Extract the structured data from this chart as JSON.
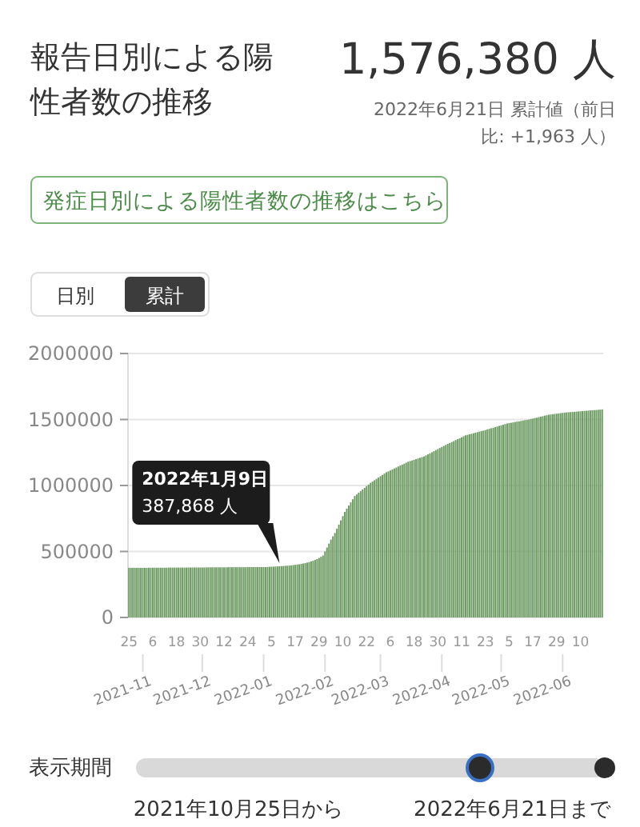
{
  "chart_data": {
    "type": "bar",
    "title": "報告日別による陽性者数の推移",
    "color": "#6f9c65",
    "grid": "y",
    "ylim": [
      0,
      2000000
    ],
    "yticks": [
      0,
      500000,
      1000000,
      1500000,
      2000000
    ],
    "xlim": [
      "2021-10-25",
      "2022-06-21"
    ],
    "xticks": [
      {
        "value": "2021-10-25",
        "label": "25"
      },
      {
        "value": "2021-11-06",
        "label": "6"
      },
      {
        "value": "2021-11-18",
        "label": "18"
      },
      {
        "value": "2021-11-30",
        "label": "30"
      },
      {
        "value": "2021-12-12",
        "label": "12"
      },
      {
        "value": "2021-12-24",
        "label": "24"
      },
      {
        "value": "2022-01-05",
        "label": "5"
      },
      {
        "value": "2022-01-17",
        "label": "17"
      },
      {
        "value": "2022-01-29",
        "label": "29"
      },
      {
        "value": "2022-02-10",
        "label": "10"
      },
      {
        "value": "2022-02-22",
        "label": "22"
      },
      {
        "value": "2022-03-06",
        "label": "6"
      },
      {
        "value": "2022-03-18",
        "label": "18"
      },
      {
        "value": "2022-03-30",
        "label": "30"
      },
      {
        "value": "2022-04-11",
        "label": "11"
      },
      {
        "value": "2022-04-23",
        "label": "23"
      },
      {
        "value": "2022-05-05",
        "label": "5"
      },
      {
        "value": "2022-05-17",
        "label": "17"
      },
      {
        "value": "2022-05-29",
        "label": "29"
      },
      {
        "value": "2022-06-10",
        "label": "10"
      }
    ],
    "x2lim": [
      "2021-10-25",
      "2022-06-21"
    ],
    "x2ticks": [
      {
        "value": "2021-11-01",
        "label": "2021-11"
      },
      {
        "value": "2021-12-01",
        "label": "2021-12"
      },
      {
        "value": "2022-01-01",
        "label": "2022-01"
      },
      {
        "value": "2022-02-01",
        "label": "2022-02"
      },
      {
        "value": "2022-03-01",
        "label": "2022-03"
      },
      {
        "value": "2022-04-01",
        "label": "2022-04"
      },
      {
        "value": "2022-05-01",
        "label": "2022-05"
      },
      {
        "value": "2022-06-01",
        "label": "2022-06"
      }
    ],
    "annotations": [
      "1,576,380 人",
      "2022年6月21日 累計値（前日比: +1,963 人）",
      "発症日別による陽性者数の推移はこちら",
      "日別",
      "累計",
      {
        "text": "2022年1月9日\n387,868 人",
        "x": "2022-01-09",
        "y": 387868
      },
      "表示期間",
      "2021年10月25日から",
      "2022年6月21日まで"
    ],
    "x": [
      "2021-10-25",
      "2021-10-26",
      "2021-10-27",
      "2021-10-28",
      "2021-10-29",
      "2021-10-30",
      "2021-10-31",
      "2021-11-01",
      "2021-11-02",
      "2021-11-03",
      "2021-11-04",
      "2021-11-05",
      "2021-11-06",
      "2021-11-07",
      "2021-11-08",
      "2021-11-09",
      "2021-11-10",
      "2021-11-11",
      "2021-11-12",
      "2021-11-13",
      "2021-11-14",
      "2021-11-15",
      "2021-11-16",
      "2021-11-17",
      "2021-11-18",
      "2021-11-19",
      "2021-11-20",
      "2021-11-21",
      "2021-11-22",
      "2021-11-23",
      "2021-11-24",
      "2021-11-25",
      "2021-11-26",
      "2021-11-27",
      "2021-11-28",
      "2021-11-29",
      "2021-11-30",
      "2021-12-01",
      "2021-12-02",
      "2021-12-03",
      "2021-12-04",
      "2021-12-05",
      "2021-12-06",
      "2021-12-07",
      "2021-12-08",
      "2021-12-09",
      "2021-12-10",
      "2021-12-11",
      "2021-12-12",
      "2021-12-13",
      "2021-12-14",
      "2021-12-15",
      "2021-12-16",
      "2021-12-17",
      "2021-12-18",
      "2021-12-19",
      "2021-12-20",
      "2021-12-21",
      "2021-12-22",
      "2021-12-23",
      "2021-12-24",
      "2021-12-25",
      "2021-12-26",
      "2021-12-27",
      "2021-12-28",
      "2021-12-29",
      "2021-12-30",
      "2021-12-31",
      "2022-01-01",
      "2022-01-02",
      "2022-01-03",
      "2022-01-04",
      "2022-01-05",
      "2022-01-06",
      "2022-01-07",
      "2022-01-08",
      "2022-01-09",
      "2022-01-10",
      "2022-01-11",
      "2022-01-12",
      "2022-01-13",
      "2022-01-14",
      "2022-01-15",
      "2022-01-16",
      "2022-01-17",
      "2022-01-18",
      "2022-01-19",
      "2022-01-20",
      "2022-01-21",
      "2022-01-22",
      "2022-01-23",
      "2022-01-24",
      "2022-01-25",
      "2022-01-26",
      "2022-01-27",
      "2022-01-28",
      "2022-01-29",
      "2022-01-30",
      "2022-01-31",
      "2022-02-01",
      "2022-02-02",
      "2022-02-03",
      "2022-02-04",
      "2022-02-05",
      "2022-02-06",
      "2022-02-07",
      "2022-02-08",
      "2022-02-09",
      "2022-02-10",
      "2022-02-11",
      "2022-02-12",
      "2022-02-13",
      "2022-02-14",
      "2022-02-15",
      "2022-02-16",
      "2022-02-17",
      "2022-02-18",
      "2022-02-19",
      "2022-02-20",
      "2022-02-21",
      "2022-02-22",
      "2022-02-23",
      "2022-02-24",
      "2022-02-25",
      "2022-02-26",
      "2022-02-27",
      "2022-02-28",
      "2022-03-01",
      "2022-03-02",
      "2022-03-03",
      "2022-03-04",
      "2022-03-05",
      "2022-03-06",
      "2022-03-07",
      "2022-03-08",
      "2022-03-09",
      "2022-03-10",
      "2022-03-11",
      "2022-03-12",
      "2022-03-13",
      "2022-03-14",
      "2022-03-15",
      "2022-03-16",
      "2022-03-17",
      "2022-03-18",
      "2022-03-19",
      "2022-03-20",
      "2022-03-21",
      "2022-03-22",
      "2022-03-23",
      "2022-03-24",
      "2022-03-25",
      "2022-03-26",
      "2022-03-27",
      "2022-03-28",
      "2022-03-29",
      "2022-03-30",
      "2022-03-31",
      "2022-04-01",
      "2022-04-02",
      "2022-04-03",
      "2022-04-04",
      "2022-04-05",
      "2022-04-06",
      "2022-04-07",
      "2022-04-08",
      "2022-04-09",
      "2022-04-10",
      "2022-04-11",
      "2022-04-12",
      "2022-04-13",
      "2022-04-14",
      "2022-04-15",
      "2022-04-16",
      "2022-04-17",
      "2022-04-18",
      "2022-04-19",
      "2022-04-20",
      "2022-04-21",
      "2022-04-22",
      "2022-04-23",
      "2022-04-24",
      "2022-04-25",
      "2022-04-26",
      "2022-04-27",
      "2022-04-28",
      "2022-04-29",
      "2022-04-30",
      "2022-05-01",
      "2022-05-02",
      "2022-05-03",
      "2022-05-04",
      "2022-05-05",
      "2022-05-06",
      "2022-05-07",
      "2022-05-08",
      "2022-05-09",
      "2022-05-10",
      "2022-05-11",
      "2022-05-12",
      "2022-05-13",
      "2022-05-14",
      "2022-05-15",
      "2022-05-16",
      "2022-05-17",
      "2022-05-18",
      "2022-05-19",
      "2022-05-20",
      "2022-05-21",
      "2022-05-22",
      "2022-05-23",
      "2022-05-24",
      "2022-05-25",
      "2022-05-26",
      "2022-05-27",
      "2022-05-28",
      "2022-05-29",
      "2022-05-30",
      "2022-05-31",
      "2022-06-01",
      "2022-06-02",
      "2022-06-03",
      "2022-06-04",
      "2022-06-05",
      "2022-06-06",
      "2022-06-07",
      "2022-06-08",
      "2022-06-09",
      "2022-06-10",
      "2022-06-11",
      "2022-06-12",
      "2022-06-13",
      "2022-06-14",
      "2022-06-15",
      "2022-06-16",
      "2022-06-17",
      "2022-06-18",
      "2022-06-19",
      "2022-06-20",
      "2022-06-21"
    ],
    "values": [
      376000,
      376000,
      376000,
      376000,
      376000,
      376000,
      376000,
      376000,
      376000,
      376000,
      377000,
      377000,
      377000,
      377000,
      377000,
      377000,
      377000,
      377000,
      377000,
      377000,
      378000,
      378000,
      378000,
      378000,
      378000,
      378000,
      378000,
      378000,
      378000,
      378000,
      379000,
      379000,
      379000,
      379000,
      379000,
      379000,
      379000,
      379000,
      379000,
      379000,
      380000,
      380000,
      380000,
      380000,
      380000,
      380000,
      380000,
      380000,
      380000,
      380000,
      381000,
      381000,
      381000,
      381000,
      381000,
      381000,
      381000,
      381000,
      381000,
      381000,
      382000,
      382000,
      382000,
      382000,
      382000,
      382000,
      382000,
      382000,
      382000,
      382000,
      383000,
      384000,
      385000,
      385000,
      386000,
      387000,
      387868,
      389000,
      390000,
      391000,
      392000,
      393000,
      395000,
      397000,
      399000,
      401000,
      403000,
      406000,
      409000,
      412000,
      416000,
      420000,
      425000,
      430000,
      436000,
      443000,
      451000,
      460000,
      470000,
      500000,
      530000,
      560000,
      590000,
      615000,
      640000,
      672000,
      704000,
      736000,
      768000,
      800000,
      824000,
      848000,
      872000,
      896000,
      920000,
      932000,
      945000,
      957000,
      970000,
      982000,
      995000,
      1007000,
      1020000,
      1030000,
      1040000,
      1050000,
      1060000,
      1070000,
      1080000,
      1090000,
      1100000,
      1107000,
      1114000,
      1122000,
      1129000,
      1136000,
      1144000,
      1151000,
      1158000,
      1165000,
      1173000,
      1180000,
      1185000,
      1190000,
      1195000,
      1200000,
      1205000,
      1210000,
      1215000,
      1220000,
      1228000,
      1236000,
      1244000,
      1252000,
      1260000,
      1268000,
      1276000,
      1284000,
      1292000,
      1300000,
      1307000,
      1315000,
      1322000,
      1329000,
      1336000,
      1344000,
      1351000,
      1358000,
      1365000,
      1373000,
      1380000,
      1384000,
      1388000,
      1392000,
      1396000,
      1400000,
      1404000,
      1408000,
      1412000,
      1416000,
      1420000,
      1425000,
      1429000,
      1434000,
      1438000,
      1443000,
      1447000,
      1452000,
      1456000,
      1461000,
      1465000,
      1470000,
      1473000,
      1475000,
      1478000,
      1481000,
      1484000,
      1486000,
      1489000,
      1492000,
      1495000,
      1497000,
      1500000,
      1504000,
      1507000,
      1511000,
      1514000,
      1518000,
      1522000,
      1525000,
      1529000,
      1532000,
      1536000,
      1538000,
      1540000,
      1542000,
      1544000,
      1546000,
      1548000,
      1550000,
      1552000,
      1554000,
      1555000,
      1556000,
      1557000,
      1558000,
      1560000,
      1561000,
      1562000,
      1564000,
      1565000,
      1566000,
      1567000,
      1569000,
      1570000,
      1571000,
      1572000,
      1574000,
      1575000,
      1576380
    ]
  }
}
